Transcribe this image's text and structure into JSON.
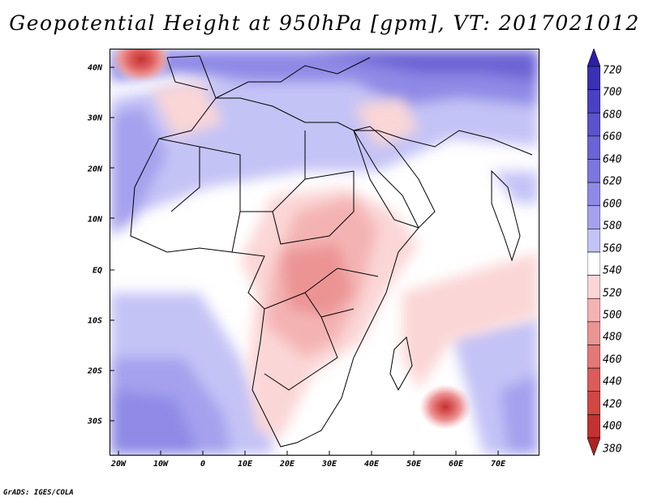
{
  "title": "Geopotential Height at 950hPa [gpm], VT: 2017021012",
  "footer": "GrADS: IGES/COLA",
  "map": {
    "variable": "Geopotential Height",
    "level": "950hPa",
    "units": "gpm",
    "valid_time": "2017021012",
    "lon_range": [
      -22,
      80
    ],
    "lat_range": [
      -37,
      45
    ],
    "y_axis_labels": [
      {
        "text": "40N",
        "lat": 40
      },
      {
        "text": "30N",
        "lat": 30
      },
      {
        "text": "20N",
        "lat": 20
      },
      {
        "text": "10N",
        "lat": 10
      },
      {
        "text": "EQ",
        "lat": 0
      },
      {
        "text": "10S",
        "lat": -10
      },
      {
        "text": "20S",
        "lat": -20
      },
      {
        "text": "30S",
        "lat": -30
      }
    ],
    "x_axis_labels": [
      {
        "text": "20W",
        "lon": -20
      },
      {
        "text": "10W",
        "lon": -10
      },
      {
        "text": "0",
        "lon": 0
      },
      {
        "text": "10E",
        "lon": 10
      },
      {
        "text": "20E",
        "lon": 20
      },
      {
        "text": "30E",
        "lon": 30
      },
      {
        "text": "40E",
        "lon": 40
      },
      {
        "text": "50E",
        "lon": 50
      },
      {
        "text": "60E",
        "lon": 60
      },
      {
        "text": "70E",
        "lon": 70
      }
    ]
  },
  "colorbar": {
    "levels": [
      "720",
      "700",
      "680",
      "660",
      "640",
      "620",
      "600",
      "580",
      "560",
      "540",
      "520",
      "500",
      "480",
      "460",
      "440",
      "420",
      "400",
      "380"
    ],
    "colors": [
      "#2c1fa6",
      "#3a30b4",
      "#4a40c2",
      "#5b52cc",
      "#6c64d4",
      "#7d77dd",
      "#8f8ae6",
      "#a5a1ee",
      "#c4c3f6",
      "#ffffff",
      "#fbd6d6",
      "#f4b3b3",
      "#ec9494",
      "#e47878",
      "#dc5c5c",
      "#d24646",
      "#c33232",
      "#b02222"
    ]
  }
}
